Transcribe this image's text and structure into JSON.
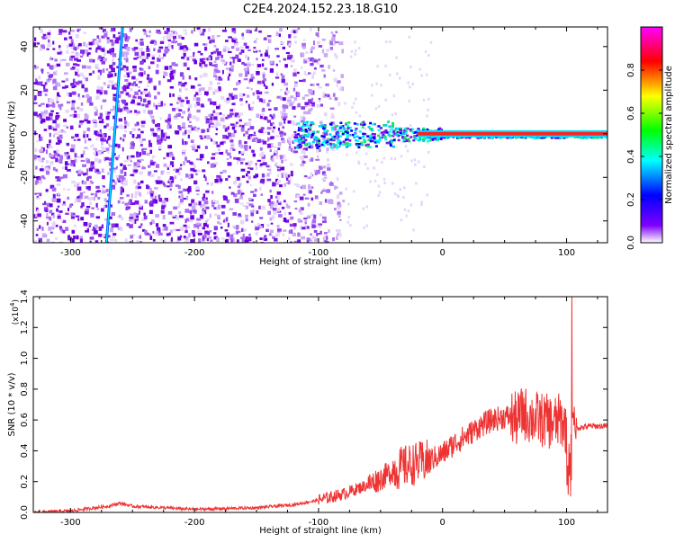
{
  "title": "C2E4.2024.152.23.18.G10",
  "chart_data": [
    {
      "type": "heatmap",
      "xlabel": "Height of straight line (km)",
      "ylabel": "Frequency (Hz)",
      "xlim": [
        -330,
        133
      ],
      "ylim": [
        -50,
        49
      ],
      "x_ticks": [
        -300,
        -200,
        -100,
        0,
        100
      ],
      "y_ticks": [
        -40,
        -20,
        0,
        20,
        40
      ],
      "colorbar": {
        "label": "Normalized spectral amplitude",
        "range": [
          0,
          1
        ],
        "ticks": [
          "0.0",
          "0.2",
          "0.4",
          "0.6",
          "0.8"
        ],
        "colors": [
          "#ffffff",
          "#7f00ff",
          "#0000ff",
          "#00ffff",
          "#00ff00",
          "#ffff00",
          "#ff0000",
          "#ff00ff"
        ]
      },
      "features": {
        "noise_region_x": [
          -330,
          -80
        ],
        "diagonal_line": {
          "x_at_ylim_low": -271,
          "x_at_ylim_high": -258
        },
        "carrier_line": {
          "freq": 0,
          "x_start": -120,
          "x_end": 133
        }
      }
    },
    {
      "type": "line",
      "xlabel": "Height of straight line (km)",
      "ylabel": "SNR (10 * v/v)",
      "y_multiplier": "(x10",
      "y_multiplier_exp": "4",
      "xlim": [
        -330,
        133
      ],
      "ylim": [
        0,
        1.4
      ],
      "x_ticks": [
        -300,
        -200,
        -100,
        0,
        100
      ],
      "y_ticks": [
        "0.0",
        "0.2",
        "0.4",
        "0.6",
        "0.8",
        "1.0",
        "1.2",
        "1.4"
      ],
      "series": [
        {
          "color": "#ee3333",
          "x": [
            -330,
            -300,
            -270,
            -260,
            -250,
            -200,
            -150,
            -120,
            -100,
            -90,
            -80,
            -70,
            -60,
            -50,
            -40,
            -30,
            -20,
            -10,
            0,
            10,
            20,
            30,
            40,
            50,
            55,
            60,
            65,
            70,
            80,
            90,
            95,
            100,
            103,
            105,
            107,
            110,
            120,
            133
          ],
          "y": [
            0.0,
            0.01,
            0.04,
            0.06,
            0.04,
            0.02,
            0.03,
            0.05,
            0.08,
            0.1,
            0.12,
            0.15,
            0.18,
            0.22,
            0.27,
            0.3,
            0.32,
            0.34,
            0.38,
            0.45,
            0.5,
            0.56,
            0.6,
            0.62,
            0.62,
            0.6,
            0.65,
            0.62,
            0.6,
            0.58,
            0.6,
            0.55,
            0.2,
            0.7,
            0.55,
            0.55,
            0.56,
            0.56
          ]
        }
      ]
    }
  ]
}
